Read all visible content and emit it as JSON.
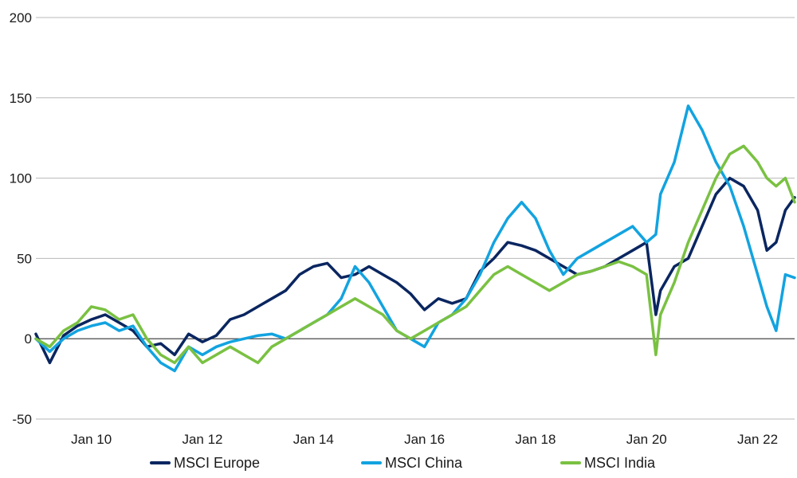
{
  "chart_data": {
    "type": "line",
    "title": "",
    "xlabel": "",
    "ylabel": "",
    "ylim": [
      -50,
      200
    ],
    "y_ticks": [
      -50,
      0,
      50,
      100,
      150,
      200
    ],
    "y_tick_labels": [
      "-50",
      "0",
      "50",
      "100",
      "150",
      "200"
    ],
    "x_range": [
      "2009-01",
      "2022-09"
    ],
    "x_tick_labels": [
      "Jan 10",
      "Jan 12",
      "Jan 14",
      "Jan 16",
      "Jan 18",
      "Jan 20",
      "Jan 22"
    ],
    "x_tick_dates": [
      "2010-01",
      "2012-01",
      "2014-01",
      "2016-01",
      "2018-01",
      "2020-01",
      "2022-01"
    ],
    "grid": true,
    "legend_position": "bottom",
    "series": [
      {
        "name": "MSCI Europe",
        "color": "#0a2660",
        "points": [
          [
            "2009-01",
            3
          ],
          [
            "2009-04",
            -15
          ],
          [
            "2009-07",
            2
          ],
          [
            "2009-10",
            8
          ],
          [
            "2010-01",
            12
          ],
          [
            "2010-04",
            15
          ],
          [
            "2010-07",
            10
          ],
          [
            "2010-10",
            5
          ],
          [
            "2011-01",
            -5
          ],
          [
            "2011-04",
            -3
          ],
          [
            "2011-07",
            -10
          ],
          [
            "2011-10",
            3
          ],
          [
            "2012-01",
            -2
          ],
          [
            "2012-04",
            2
          ],
          [
            "2012-07",
            12
          ],
          [
            "2012-10",
            15
          ],
          [
            "2013-01",
            20
          ],
          [
            "2013-04",
            25
          ],
          [
            "2013-07",
            30
          ],
          [
            "2013-10",
            40
          ],
          [
            "2014-01",
            45
          ],
          [
            "2014-04",
            47
          ],
          [
            "2014-07",
            38
          ],
          [
            "2014-10",
            40
          ],
          [
            "2015-01",
            45
          ],
          [
            "2015-04",
            40
          ],
          [
            "2015-07",
            35
          ],
          [
            "2015-10",
            28
          ],
          [
            "2016-01",
            18
          ],
          [
            "2016-04",
            25
          ],
          [
            "2016-07",
            22
          ],
          [
            "2016-10",
            25
          ],
          [
            "2017-01",
            42
          ],
          [
            "2017-04",
            50
          ],
          [
            "2017-07",
            60
          ],
          [
            "2017-10",
            58
          ],
          [
            "2018-01",
            55
          ],
          [
            "2018-04",
            50
          ],
          [
            "2018-07",
            45
          ],
          [
            "2018-10",
            40
          ],
          [
            "2019-01",
            42
          ],
          [
            "2019-04",
            45
          ],
          [
            "2019-07",
            50
          ],
          [
            "2019-10",
            55
          ],
          [
            "2020-01",
            60
          ],
          [
            "2020-03",
            15
          ],
          [
            "2020-04",
            30
          ],
          [
            "2020-07",
            45
          ],
          [
            "2020-10",
            50
          ],
          [
            "2021-01",
            70
          ],
          [
            "2021-04",
            90
          ],
          [
            "2021-07",
            100
          ],
          [
            "2021-10",
            95
          ],
          [
            "2022-01",
            80
          ],
          [
            "2022-03",
            55
          ],
          [
            "2022-05",
            60
          ],
          [
            "2022-07",
            80
          ],
          [
            "2022-09",
            88
          ]
        ]
      },
      {
        "name": "MSCI China",
        "color": "#12a3e0",
        "points": [
          [
            "2009-01",
            0
          ],
          [
            "2009-04",
            -8
          ],
          [
            "2009-07",
            0
          ],
          [
            "2009-10",
            5
          ],
          [
            "2010-01",
            8
          ],
          [
            "2010-04",
            10
          ],
          [
            "2010-07",
            5
          ],
          [
            "2010-10",
            8
          ],
          [
            "2011-01",
            -5
          ],
          [
            "2011-04",
            -15
          ],
          [
            "2011-07",
            -20
          ],
          [
            "2011-10",
            -5
          ],
          [
            "2012-01",
            -10
          ],
          [
            "2012-04",
            -5
          ],
          [
            "2012-07",
            -2
          ],
          [
            "2012-10",
            0
          ],
          [
            "2013-01",
            2
          ],
          [
            "2013-04",
            3
          ],
          [
            "2013-07",
            0
          ],
          [
            "2013-10",
            5
          ],
          [
            "2014-01",
            10
          ],
          [
            "2014-04",
            15
          ],
          [
            "2014-07",
            25
          ],
          [
            "2014-10",
            45
          ],
          [
            "2015-01",
            35
          ],
          [
            "2015-04",
            20
          ],
          [
            "2015-07",
            5
          ],
          [
            "2015-10",
            0
          ],
          [
            "2016-01",
            -5
          ],
          [
            "2016-04",
            10
          ],
          [
            "2016-07",
            15
          ],
          [
            "2016-10",
            25
          ],
          [
            "2017-01",
            40
          ],
          [
            "2017-04",
            60
          ],
          [
            "2017-07",
            75
          ],
          [
            "2017-10",
            85
          ],
          [
            "2018-01",
            75
          ],
          [
            "2018-04",
            55
          ],
          [
            "2018-07",
            40
          ],
          [
            "2018-10",
            50
          ],
          [
            "2019-01",
            55
          ],
          [
            "2019-04",
            60
          ],
          [
            "2019-07",
            65
          ],
          [
            "2019-10",
            70
          ],
          [
            "2020-01",
            60
          ],
          [
            "2020-03",
            65
          ],
          [
            "2020-04",
            90
          ],
          [
            "2020-07",
            110
          ],
          [
            "2020-10",
            145
          ],
          [
            "2021-01",
            130
          ],
          [
            "2021-04",
            110
          ],
          [
            "2021-07",
            95
          ],
          [
            "2021-10",
            70
          ],
          [
            "2022-01",
            40
          ],
          [
            "2022-03",
            20
          ],
          [
            "2022-05",
            5
          ],
          [
            "2022-07",
            40
          ],
          [
            "2022-09",
            38
          ]
        ]
      },
      {
        "name": "MSCI India",
        "color": "#7ac142",
        "points": [
          [
            "2009-01",
            0
          ],
          [
            "2009-04",
            -5
          ],
          [
            "2009-07",
            5
          ],
          [
            "2009-10",
            10
          ],
          [
            "2010-01",
            20
          ],
          [
            "2010-04",
            18
          ],
          [
            "2010-07",
            12
          ],
          [
            "2010-10",
            15
          ],
          [
            "2011-01",
            0
          ],
          [
            "2011-04",
            -10
          ],
          [
            "2011-07",
            -15
          ],
          [
            "2011-10",
            -5
          ],
          [
            "2012-01",
            -15
          ],
          [
            "2012-04",
            -10
          ],
          [
            "2012-07",
            -5
          ],
          [
            "2012-10",
            -10
          ],
          [
            "2013-01",
            -15
          ],
          [
            "2013-04",
            -5
          ],
          [
            "2013-07",
            0
          ],
          [
            "2013-10",
            5
          ],
          [
            "2014-01",
            10
          ],
          [
            "2014-04",
            15
          ],
          [
            "2014-07",
            20
          ],
          [
            "2014-10",
            25
          ],
          [
            "2015-01",
            20
          ],
          [
            "2015-04",
            15
          ],
          [
            "2015-07",
            5
          ],
          [
            "2015-10",
            0
          ],
          [
            "2016-01",
            5
          ],
          [
            "2016-04",
            10
          ],
          [
            "2016-07",
            15
          ],
          [
            "2016-10",
            20
          ],
          [
            "2017-01",
            30
          ],
          [
            "2017-04",
            40
          ],
          [
            "2017-07",
            45
          ],
          [
            "2017-10",
            40
          ],
          [
            "2018-01",
            35
          ],
          [
            "2018-04",
            30
          ],
          [
            "2018-07",
            35
          ],
          [
            "2018-10",
            40
          ],
          [
            "2019-01",
            42
          ],
          [
            "2019-04",
            45
          ],
          [
            "2019-07",
            48
          ],
          [
            "2019-10",
            45
          ],
          [
            "2020-01",
            40
          ],
          [
            "2020-03",
            -10
          ],
          [
            "2020-04",
            15
          ],
          [
            "2020-07",
            35
          ],
          [
            "2020-10",
            60
          ],
          [
            "2021-01",
            80
          ],
          [
            "2021-04",
            100
          ],
          [
            "2021-07",
            115
          ],
          [
            "2021-10",
            120
          ],
          [
            "2022-01",
            110
          ],
          [
            "2022-03",
            100
          ],
          [
            "2022-05",
            95
          ],
          [
            "2022-07",
            100
          ],
          [
            "2022-09",
            85
          ]
        ]
      }
    ]
  }
}
